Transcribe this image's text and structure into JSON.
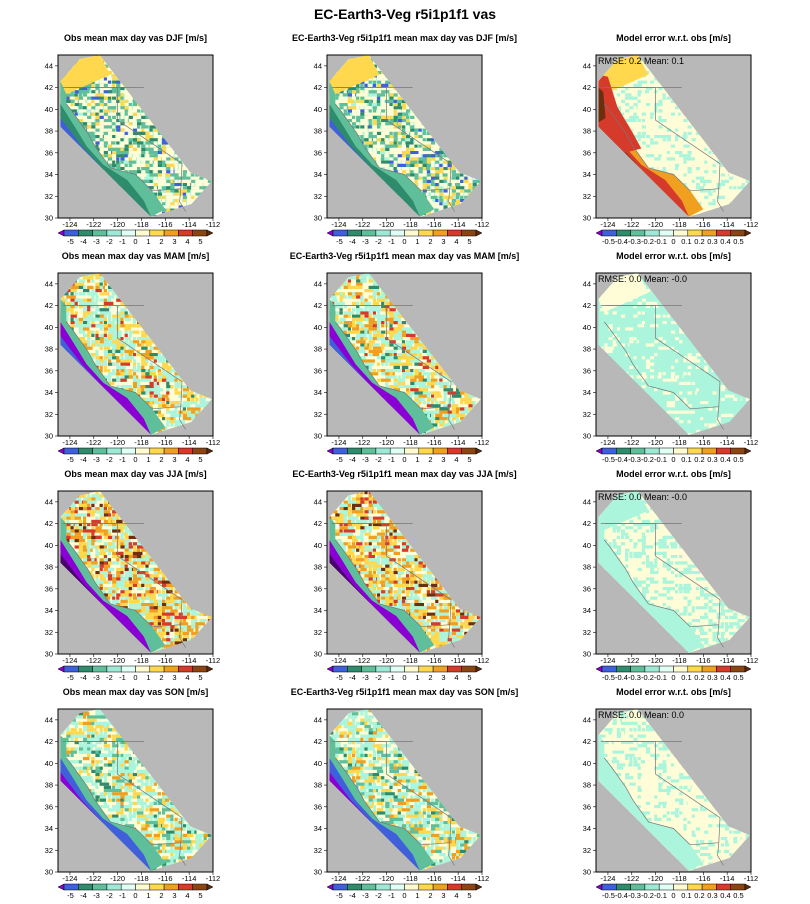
{
  "figure": {
    "title": "EC-Earth3-Veg r5i1p1f1 vas"
  },
  "chart_data": {
    "type": "heatmap",
    "grid": {
      "rows": [
        "DJF",
        "MAM",
        "JJA",
        "SON"
      ],
      "columns": [
        "obs",
        "model",
        "error"
      ]
    },
    "axes": {
      "x_ticks": [
        "-124",
        "-122",
        "-120",
        "-118",
        "-116",
        "-114",
        "-112"
      ],
      "y_ticks": [
        "44",
        "42",
        "40",
        "38",
        "36",
        "34",
        "32",
        "30"
      ],
      "xlim": [
        -125,
        -112
      ],
      "ylim": [
        30,
        45
      ]
    },
    "colorbars": {
      "value": {
        "labels": [
          "-5",
          "-4",
          "-3",
          "-2",
          "-1",
          "0",
          "1",
          "2",
          "3",
          "4",
          "5"
        ],
        "colors": [
          "#8a00d4",
          "#3f5fdb",
          "#2e8b6b",
          "#5fbf9a",
          "#9ee8d6",
          "#e0fff5",
          "#fffbd0",
          "#ffd84d",
          "#f0a020",
          "#d63a2a",
          "#8b4513",
          "#5a2a10"
        ]
      },
      "error": {
        "labels": [
          "-0.5",
          "-0.4",
          "-0.3",
          "-0.2",
          "-0.1",
          "0",
          "0.1",
          "0.2",
          "0.3",
          "0.4",
          "0.5"
        ],
        "colors": [
          "#8a00d4",
          "#3f5fdb",
          "#2e8b6b",
          "#5fbf9a",
          "#9ee8d6",
          "#e0fff5",
          "#fffbd0",
          "#ffd84d",
          "#f0a020",
          "#d63a2a",
          "#8b4513",
          "#5a2a10"
        ]
      }
    },
    "colors": {
      "background": "#b8b8b8",
      "field_neutral": "#fffdd8",
      "field_cyan": "#aaf5dc",
      "field_yellow": "#ffd84d",
      "field_orange": "#f0a020",
      "field_red": "#d63a2a",
      "field_brown": "#6b2e0e",
      "field_purple": "#8a00d4",
      "field_blue": "#3f5fdb",
      "field_green": "#2e8b6b",
      "field_lightgreen": "#5fbf9a",
      "border": "#777777"
    },
    "panels": [
      {
        "row": 0,
        "col": 0,
        "title": "Obs mean max day  vas DJF [m/s]",
        "scheme": "obs_djf"
      },
      {
        "row": 0,
        "col": 1,
        "title": "EC-Earth3-Veg r5i1p1f1 mean max day vas DJF [m/s]",
        "scheme": "obs_djf"
      },
      {
        "row": 0,
        "col": 2,
        "title": "Model error w.r.t. obs [m/s]",
        "scheme": "err_djf",
        "rmse": "RMSE: 0.2",
        "mean": "Mean: 0.1"
      },
      {
        "row": 1,
        "col": 0,
        "title": "Obs mean max day  vas MAM [m/s]",
        "scheme": "obs_mam"
      },
      {
        "row": 1,
        "col": 1,
        "title": "EC-Earth3-Veg r5i1p1f1 mean max day vas MAM [m/s]",
        "scheme": "obs_mam"
      },
      {
        "row": 1,
        "col": 2,
        "title": "Model error w.r.t. obs [m/s]",
        "scheme": "err_mam",
        "rmse": "RMSE: 0.0",
        "mean": "Mean: -0.0"
      },
      {
        "row": 2,
        "col": 0,
        "title": "Obs mean max day  vas JJA [m/s]",
        "scheme": "obs_jja"
      },
      {
        "row": 2,
        "col": 1,
        "title": "EC-Earth3-Veg r5i1p1f1 mean max day vas JJA [m/s]",
        "scheme": "obs_jja"
      },
      {
        "row": 2,
        "col": 2,
        "title": "Model error w.r.t. obs [m/s]",
        "scheme": "err_jja",
        "rmse": "RMSE: 0.0",
        "mean": "Mean: -0.0"
      },
      {
        "row": 3,
        "col": 0,
        "title": "Obs mean max day  vas SON [m/s]",
        "scheme": "obs_son"
      },
      {
        "row": 3,
        "col": 1,
        "title": "EC-Earth3-Veg r5i1p1f1 mean max day vas SON [m/s]",
        "scheme": "obs_son"
      },
      {
        "row": 3,
        "col": 2,
        "title": "Model error w.r.t. obs [m/s]",
        "scheme": "err_son",
        "rmse": "RMSE: 0.0",
        "mean": "Mean: 0.0"
      }
    ]
  }
}
